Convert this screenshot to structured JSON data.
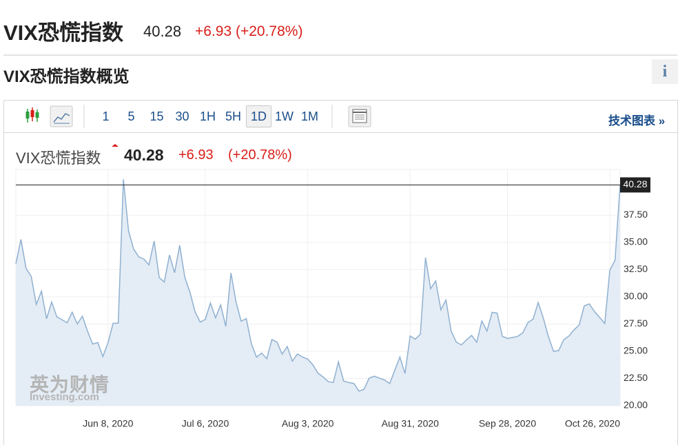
{
  "header": {
    "title": "VIX恐慌指数",
    "price": "40.28",
    "change": "+6.93 (+20.78%)"
  },
  "section_title": "VIX恐慌指数概览",
  "info_icon": "i",
  "toolbar": {
    "intervals": [
      "1",
      "5",
      "15",
      "30",
      "1H",
      "5H",
      "1D",
      "1W",
      "1M"
    ],
    "tech_chart_link": "技术图表 »"
  },
  "watermark": [
    "英为财情",
    "Investing.com"
  ],
  "chart_data": {
    "type": "line",
    "name": "VIX恐慌指数",
    "last": "40.28",
    "change": "+6.93",
    "change_pct": "(+20.78%)",
    "categories": [
      null,
      null,
      null,
      null,
      null,
      null,
      null,
      null,
      null,
      null,
      null,
      null,
      null,
      null,
      null,
      null,
      null,
      null,
      "Jun 8, 2020",
      null,
      null,
      null,
      null,
      null,
      null,
      null,
      null,
      null,
      null,
      null,
      null,
      null,
      null,
      null,
      null,
      null,
      null,
      "Jul 6, 2020",
      null,
      null,
      null,
      null,
      null,
      null,
      null,
      null,
      null,
      null,
      null,
      null,
      null,
      null,
      null,
      null,
      null,
      null,
      null,
      "Aug 3, 2020",
      null,
      null,
      null,
      null,
      null,
      null,
      null,
      null,
      null,
      null,
      null,
      null,
      null,
      null,
      null,
      null,
      null,
      null,
      null,
      "Aug 31, 2020",
      null,
      null,
      null,
      null,
      null,
      null,
      null,
      null,
      null,
      null,
      null,
      null,
      null,
      null,
      null,
      null,
      null,
      null,
      "Sep 28, 2020",
      null,
      null,
      null,
      null,
      null,
      null,
      null,
      null,
      null,
      null,
      null,
      null,
      null,
      null,
      null,
      null,
      null,
      null,
      null,
      "Oct 26, 2020",
      null,
      null
    ],
    "values": [
      33.04,
      35.28,
      32.61,
      31.89,
      29.3,
      30.53,
      27.99,
      29.53,
      28.16,
      27.91,
      27.62,
      28.59,
      27.51,
      28.23,
      26.84,
      25.66,
      25.81,
      24.52,
      25.81,
      27.57,
      27.57,
      40.79,
      36.09,
      34.4,
      33.67,
      33.47,
      32.94,
      35.12,
      31.77,
      31.37,
      33.84,
      32.22,
      34.73,
      31.78,
      30.43,
      28.62,
      27.68,
      27.94,
      29.43,
      28.08,
      29.26,
      27.29,
      32.19,
      29.52,
      27.76,
      28.0,
      25.68,
      24.46,
      24.84,
      24.32,
      26.08,
      25.84,
      24.74,
      25.44,
      24.1,
      24.76,
      24.46,
      24.28,
      23.76,
      22.99,
      22.65,
      22.21,
      22.14,
      24.03,
      22.28,
      22.13,
      22.05,
      21.35,
      21.51,
      22.54,
      22.72,
      22.54,
      22.37,
      22.03,
      23.27,
      24.47,
      22.96,
      26.41,
      26.12,
      26.57,
      33.6,
      30.75,
      31.46,
      28.81,
      29.71,
      26.87,
      25.85,
      25.59,
      26.04,
      26.46,
      25.83,
      27.78,
      26.86,
      28.58,
      28.51,
      26.38,
      26.19,
      26.27,
      26.37,
      26.7,
      27.63,
      27.96,
      29.48,
      28.06,
      26.36,
      25.0,
      25.07,
      26.07,
      26.4,
      26.97,
      27.41,
      29.18,
      29.35,
      28.65,
      28.11,
      27.55,
      32.46,
      33.35,
      40.28
    ],
    "color": "#8fb0d0",
    "fill_color": "#e4ecf5",
    "ylim": [
      20,
      41.7
    ],
    "yticks": [
      {
        "value": 20,
        "label": "20.00"
      },
      {
        "value": 22.5,
        "label": "22.50"
      },
      {
        "value": 25,
        "label": "25.00"
      },
      {
        "value": 27.5,
        "label": "27.50"
      },
      {
        "value": 30,
        "label": "30.00"
      },
      {
        "value": 32.5,
        "label": "32.50"
      },
      {
        "value": 35,
        "label": "35.00"
      },
      {
        "value": 37.5,
        "label": "37.50"
      }
    ],
    "grid": true,
    "last_value_label": "40.28"
  }
}
